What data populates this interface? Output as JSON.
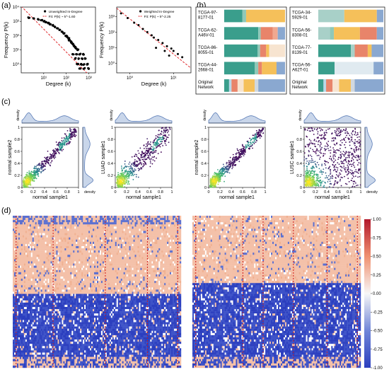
{
  "panel_labels": [
    "(a)",
    "(b)",
    "(c)",
    "(d)"
  ],
  "chart_data": [
    {
      "panel": "a1",
      "type": "scatter",
      "xlabel": "Degree (k)",
      "ylabel": "Frequency P(k)",
      "log_x": true,
      "log_y": true,
      "x_ticks": [
        "10¹",
        "10²",
        "10³"
      ],
      "y_ticks": [
        "10⁰",
        "10¹",
        "10²",
        "10³",
        "10⁴"
      ],
      "xlim_log10": [
        0,
        3.3
      ],
      "ylim_log10": [
        -0.6,
        4.0
      ],
      "legend": [
        "Unweighted In-Degree",
        "Fit: P(k) ~ k^-1.60"
      ],
      "legend_position": "top-right",
      "fit_exponent": -1.6,
      "points_log10": [
        [
          0.35,
          3.25
        ],
        [
          0.55,
          3.2
        ],
        [
          0.75,
          3.15
        ],
        [
          0.9,
          3.08
        ],
        [
          1.0,
          3.0
        ],
        [
          1.1,
          2.95
        ],
        [
          1.2,
          2.88
        ],
        [
          1.3,
          2.8
        ],
        [
          1.4,
          2.72
        ],
        [
          1.5,
          2.62
        ],
        [
          1.6,
          2.52
        ],
        [
          1.7,
          2.4
        ],
        [
          1.8,
          2.28
        ],
        [
          1.9,
          2.15
        ],
        [
          2.0,
          2.0
        ],
        [
          2.05,
          1.9
        ],
        [
          2.1,
          1.8
        ],
        [
          2.15,
          1.7
        ],
        [
          2.2,
          1.6
        ],
        [
          2.25,
          1.5
        ],
        [
          2.3,
          1.4
        ],
        [
          2.35,
          1.3
        ],
        [
          2.4,
          1.2
        ],
        [
          2.45,
          1.1
        ],
        [
          2.5,
          1.0
        ],
        [
          2.3,
          0.7
        ],
        [
          2.45,
          0.7
        ],
        [
          2.6,
          0.7
        ],
        [
          2.75,
          0.7
        ],
        [
          2.4,
          0.4
        ],
        [
          2.55,
          0.4
        ],
        [
          2.7,
          0.4
        ],
        [
          2.85,
          0.4
        ],
        [
          2.5,
          0.0
        ],
        [
          2.65,
          0.0
        ],
        [
          2.8,
          0.0
        ],
        [
          2.95,
          0.0
        ],
        [
          2.6,
          -0.3
        ],
        [
          2.8,
          -0.3
        ],
        [
          3.0,
          -0.3
        ]
      ]
    },
    {
      "panel": "a2",
      "type": "scatter",
      "xlabel": "Degree (k)",
      "ylabel": "Frequency P(k)",
      "log_x": true,
      "log_y": true,
      "x_ticks": [
        "10⁰",
        "10¹"
      ],
      "y_ticks": [
        "10⁰",
        "10¹",
        "10²",
        "10³"
      ],
      "xlim_log10": [
        -0.3,
        1.4
      ],
      "ylim_log10": [
        -0.6,
        3.6
      ],
      "legend": [
        "Weighted In-Degree",
        "Fit: P(k) ~ k^-2.25"
      ],
      "legend_position": "top-right",
      "fit_exponent": -2.25,
      "points_log10": [
        [
          -0.2,
          3.2
        ],
        [
          -0.05,
          2.9
        ],
        [
          0.1,
          2.6
        ],
        [
          0.2,
          2.45
        ],
        [
          0.3,
          2.2
        ],
        [
          0.4,
          2.0
        ],
        [
          0.5,
          1.8
        ],
        [
          0.55,
          1.65
        ],
        [
          0.65,
          1.5
        ],
        [
          0.75,
          1.3
        ],
        [
          0.85,
          1.1
        ],
        [
          0.95,
          0.95
        ],
        [
          1.0,
          0.8
        ],
        [
          1.1,
          0.6
        ],
        [
          1.2,
          0.4
        ],
        [
          0.6,
          1.0
        ],
        [
          0.8,
          0.8
        ],
        [
          0.9,
          0.5
        ]
      ]
    },
    {
      "panel": "b",
      "type": "bar",
      "orientation": "horizontal",
      "stacked": true,
      "left_group": [
        {
          "label": "TCGA-97-\n8177-01",
          "segments": [
            [
              "#3a9e8c",
              0.3
            ],
            [
              "#8fc8b8",
              0.06
            ],
            [
              "#f5c05a",
              0.64
            ]
          ]
        },
        {
          "label": "TCGA-62-\nA46V-01",
          "segments": [
            [
              "#3a9e8c",
              0.56
            ],
            [
              "#8fc8b8",
              0.04
            ],
            [
              "#e8846a",
              0.2
            ],
            [
              "#f0a890",
              0.08
            ],
            [
              "#8aa8d0",
              0.12
            ]
          ]
        },
        {
          "label": "TCGA-86-\n8055-01",
          "segments": [
            [
              "#3a9e8c",
              0.55
            ],
            [
              "#8fc8b8",
              0.04
            ],
            [
              "#e8846a",
              0.1
            ],
            [
              "#f5c05a",
              0.05
            ],
            [
              "#f7e4d0",
              0.26
            ]
          ]
        },
        {
          "label": "TCGA-44-\n2668-01",
          "segments": [
            [
              "#3a9e8c",
              0.5
            ],
            [
              "#8fc8b8",
              0.06
            ],
            [
              "#e8846a",
              0.06
            ],
            [
              "#f5c05a",
              0.24
            ],
            [
              "#8aa8d0",
              0.14
            ]
          ]
        },
        {
          "label": "Original\nNetwork",
          "segments": [
            [
              "#3a9e8c",
              0.08
            ],
            [
              "#b8d8e8",
              0.04
            ],
            [
              "#e8846a",
              0.1
            ],
            [
              "#f7e4d0",
              0.1
            ],
            [
              "#f5c05a",
              0.18
            ],
            [
              "#d0d8e0",
              0.06
            ],
            [
              "#8aa8d0",
              0.44
            ]
          ]
        }
      ],
      "right_group": [
        {
          "label": "TCGA-34-\n5929-01",
          "segments": [
            [
              "#a8d0c8",
              0.4
            ],
            [
              "#f5c05a",
              0.5
            ],
            [
              "#8aa8d0",
              0.1
            ]
          ]
        },
        {
          "label": "TCGA-56-\n8308-01",
          "segments": [
            [
              "#a8d0c8",
              0.18
            ],
            [
              "#8fc8b8",
              0.06
            ],
            [
              "#f5c05a",
              0.4
            ],
            [
              "#e8846a",
              0.26
            ],
            [
              "#8aa8d0",
              0.1
            ]
          ]
        },
        {
          "label": "TCGA-77-\n8139-01",
          "segments": [
            [
              "#3a9e8c",
              0.5
            ],
            [
              "#a8d0c8",
              0.06
            ],
            [
              "#e8846a",
              0.2
            ],
            [
              "#f5c05a",
              0.06
            ],
            [
              "#8aa8d0",
              0.18
            ]
          ]
        },
        {
          "label": "TCGA-56-\nA62T-01",
          "segments": [
            [
              "#3a9e8c",
              0.25
            ],
            [
              "#e0eaf0",
              0.6
            ],
            [
              "#8aa8d0",
              0.15
            ]
          ]
        },
        {
          "label": "Original\nNetwork",
          "segments": [
            [
              "#3a9e8c",
              0.08
            ],
            [
              "#b8d8e8",
              0.04
            ],
            [
              "#e8846a",
              0.1
            ],
            [
              "#f7e4d0",
              0.1
            ],
            [
              "#f5c05a",
              0.18
            ],
            [
              "#d0d8e0",
              0.06
            ],
            [
              "#8aa8d0",
              0.44
            ]
          ]
        }
      ]
    },
    {
      "panel": "c",
      "type": "scatter",
      "subplots": [
        {
          "xlabel": "normal sample1",
          "ylabel": "normal sample2",
          "pattern": "tight"
        },
        {
          "xlabel": "normal sample1",
          "ylabel": "LUAD sample1",
          "pattern": "medium"
        },
        {
          "xlabel": "normal sample1",
          "ylabel": "normal sample2",
          "pattern": "tight"
        },
        {
          "xlabel": "normal sample1",
          "ylabel": "LUSC sample1",
          "pattern": "diffuse"
        }
      ],
      "x_ticks": [
        "0",
        "0.2",
        "0.4",
        "0.6",
        "0.8",
        "1"
      ],
      "y_ticks": [
        "0",
        "0.2",
        "0.4",
        "0.6",
        "0.8",
        "1"
      ],
      "xlim": [
        0,
        1
      ],
      "ylim": [
        0,
        1
      ],
      "marginal_label": "density"
    },
    {
      "panel": "d",
      "type": "heatmap",
      "colorbar_ticks": [
        "1.00",
        "0.75",
        "0.50",
        "0.25",
        "0.00",
        "-0.25",
        "-0.50",
        "-0.75",
        "-1.00"
      ],
      "clim": [
        -1,
        1
      ],
      "colors": {
        "high": "#b2182b",
        "mid": "#f7f7f7",
        "low": "#2c3fbf",
        "warm": "#f4c0a8"
      }
    }
  ]
}
